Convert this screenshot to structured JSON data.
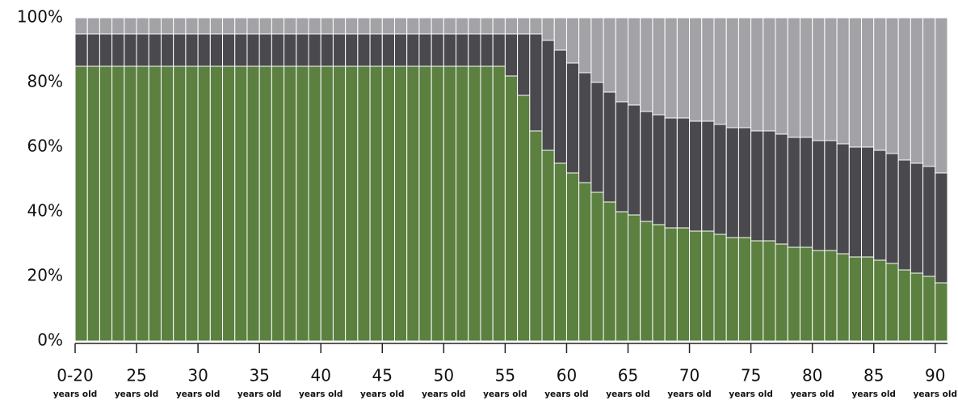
{
  "chart_data": {
    "type": "stacked-bar",
    "x": [
      20,
      21,
      22,
      23,
      24,
      25,
      26,
      27,
      28,
      29,
      30,
      31,
      32,
      33,
      34,
      35,
      36,
      37,
      38,
      39,
      40,
      41,
      42,
      43,
      44,
      45,
      46,
      47,
      48,
      49,
      50,
      51,
      52,
      53,
      54,
      55,
      56,
      57,
      58,
      59,
      60,
      61,
      62,
      63,
      64,
      65,
      66,
      67,
      68,
      69,
      70,
      71,
      72,
      73,
      74,
      75,
      76,
      77,
      78,
      79,
      80,
      81,
      82,
      83,
      84,
      85,
      86,
      87,
      88,
      89,
      90
    ],
    "series": [
      {
        "color": "#5b803f",
        "values": [
          85,
          85,
          85,
          85,
          85,
          85,
          85,
          85,
          85,
          85,
          85,
          85,
          85,
          85,
          85,
          85,
          85,
          85,
          85,
          85,
          85,
          85,
          85,
          85,
          85,
          85,
          85,
          85,
          85,
          85,
          85,
          85,
          85,
          85,
          85,
          82,
          76,
          65,
          59,
          55,
          52,
          49,
          46,
          43,
          40,
          39,
          37,
          36,
          35,
          35,
          34,
          34,
          33,
          32,
          32,
          31,
          31,
          30,
          29,
          29,
          28,
          28,
          27,
          26,
          26,
          25,
          24,
          22,
          21,
          20,
          18
        ]
      },
      {
        "color": "#4a4a4e",
        "values": [
          10,
          10,
          10,
          10,
          10,
          10,
          10,
          10,
          10,
          10,
          10,
          10,
          10,
          10,
          10,
          10,
          10,
          10,
          10,
          10,
          10,
          10,
          10,
          10,
          10,
          10,
          10,
          10,
          10,
          10,
          10,
          10,
          10,
          10,
          10,
          13,
          19,
          30,
          34,
          35,
          34,
          34,
          34,
          34,
          34,
          34,
          34,
          34,
          34,
          34,
          34,
          34,
          34,
          34,
          34,
          34,
          34,
          34,
          34,
          34,
          34,
          34,
          34,
          34,
          34,
          34,
          34,
          34,
          34,
          34,
          34
        ]
      },
      {
        "color": "#a3a3a7",
        "values": [
          5,
          5,
          5,
          5,
          5,
          5,
          5,
          5,
          5,
          5,
          5,
          5,
          5,
          5,
          5,
          5,
          5,
          5,
          5,
          5,
          5,
          5,
          5,
          5,
          5,
          5,
          5,
          5,
          5,
          5,
          5,
          5,
          5,
          5,
          5,
          5,
          5,
          5,
          7,
          10,
          14,
          17,
          20,
          23,
          26,
          27,
          29,
          30,
          31,
          31,
          32,
          32,
          33,
          34,
          34,
          35,
          35,
          36,
          37,
          37,
          38,
          38,
          39,
          40,
          40,
          41,
          42,
          44,
          45,
          46,
          48
        ]
      }
    ],
    "xlim": [
      20,
      91
    ],
    "xticks": [
      {
        "value": 20,
        "label": "0-20"
      },
      25,
      30,
      35,
      40,
      45,
      50,
      55,
      60,
      65,
      70,
      75,
      80,
      85,
      90
    ],
    "x_tick_unit": "years old",
    "ylim": [
      0,
      100
    ],
    "yticks": [
      {
        "value": 0,
        "label": "0%"
      },
      {
        "value": 20,
        "label": "20%"
      },
      {
        "value": 40,
        "label": "40%"
      },
      {
        "value": 60,
        "label": "60%"
      },
      {
        "value": 80,
        "label": "80%"
      },
      {
        "value": 100,
        "label": "100%"
      }
    ]
  }
}
